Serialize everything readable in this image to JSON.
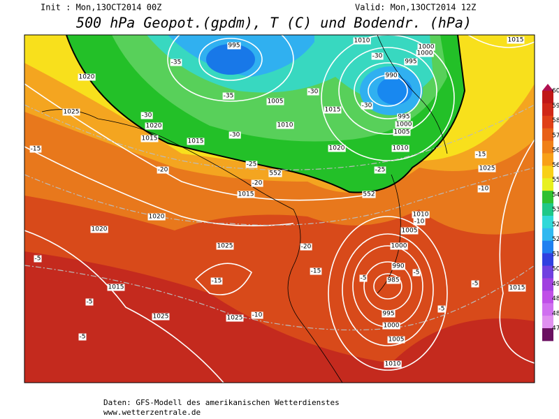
{
  "header": {
    "init": "Init : Mon,13OCT2014 00Z",
    "valid": "Valid: Mon,13OCT2014 12Z",
    "title": "500 hPa Geopot.(gpdm), T (C) und Bodendr. (hPa)"
  },
  "isobar_labels": [
    995,
    1010,
    1000,
    995,
    990,
    1020,
    1025,
    1020,
    1015,
    1015,
    1005,
    1010,
    1015,
    1020,
    1010,
    995,
    1000,
    1005,
    1015,
    1015,
    1020,
    1020,
    1025,
    1010,
    1005,
    1000,
    990,
    985,
    995,
    1000,
    1005,
    1010,
    1015,
    1025,
    1025,
    1015,
    1025,
    1000
  ],
  "height_labels": [
    552,
    552
  ],
  "temperature_labels": [
    -35,
    -35,
    -30,
    -30,
    -30,
    -30,
    -30,
    -25,
    -25,
    -20,
    -20,
    -15,
    -15,
    -10,
    -10,
    -20,
    -15,
    -15,
    -10,
    -5,
    -5,
    -5,
    -5,
    -5,
    -5,
    -5
  ],
  "colorbar_labels": [
    "60",
    "59",
    "58",
    "57",
    "56",
    "56",
    "55",
    "54",
    "53",
    "52",
    "52",
    "51",
    "50",
    "49",
    "48",
    "48",
    "47"
  ],
  "footer": {
    "source": "Daten: GFS-Modell des amerikanischen Wetterdienstes",
    "url": "www.wetterzentrale.de"
  }
}
